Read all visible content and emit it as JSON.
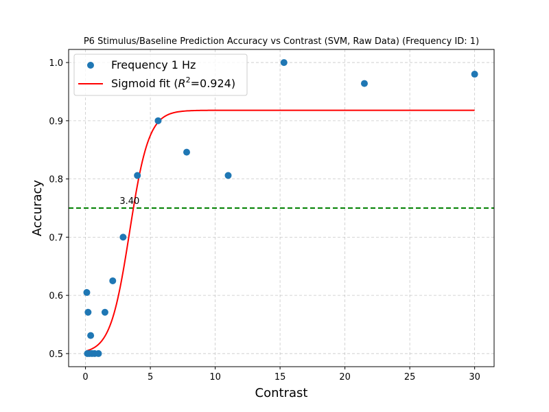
{
  "chart_data": {
    "type": "scatter",
    "title": "P6 Stimulus/Baseline Prediction Accuracy vs Contrast (SVM, Raw Data) (Frequency ID: 1)",
    "xlabel": "Contrast",
    "ylabel": "Accuracy",
    "xlim": [
      -1.3,
      31.5
    ],
    "ylim": [
      0.4775,
      1.0225
    ],
    "xticks": [
      "0",
      "5",
      "10",
      "15",
      "20",
      "25",
      "30"
    ],
    "xtick_values": [
      0,
      5,
      10,
      15,
      20,
      25,
      30
    ],
    "yticks": [
      "0.5",
      "0.6",
      "0.7",
      "0.8",
      "0.9",
      "1.0"
    ],
    "ytick_values": [
      0.5,
      0.6,
      0.7,
      0.8,
      0.9,
      1.0
    ],
    "grid": true,
    "legend_position": "top-left",
    "series": [
      {
        "name": "Frequency 1 Hz",
        "kind": "scatter",
        "color": "#1f77b4",
        "x": [
          0.1,
          0.15,
          0.2,
          0.3,
          0.4,
          0.5,
          0.7,
          1.0,
          1.5,
          2.1,
          2.9,
          4.0,
          5.6,
          7.8,
          11.0,
          15.3,
          21.5,
          30.0
        ],
        "y": [
          0.605,
          0.5,
          0.571,
          0.5,
          0.531,
          0.5,
          0.5,
          0.5,
          0.571,
          0.625,
          0.7,
          0.806,
          0.9,
          0.846,
          0.806,
          1.0,
          0.964,
          0.98
        ]
      },
      {
        "name": "Sigmoid fit (R²=0.924)",
        "legend_label_prefix": "Sigmoid fit (",
        "legend_label_r": "R",
        "legend_label_sup": "2",
        "legend_label_suffix": "=0.924)",
        "kind": "line",
        "color": "#ff0000",
        "function": "sigmoid",
        "params": {
          "lower": 0.5,
          "upper": 0.918,
          "x0": 3.4,
          "k": 1.35
        },
        "x_range": [
          0.1,
          30.0
        ]
      }
    ],
    "threshold": {
      "y": 0.75,
      "color": "#008000",
      "style": "dashed"
    },
    "annotation": {
      "text": "3.40",
      "x": 3.4,
      "y": 0.757
    }
  }
}
